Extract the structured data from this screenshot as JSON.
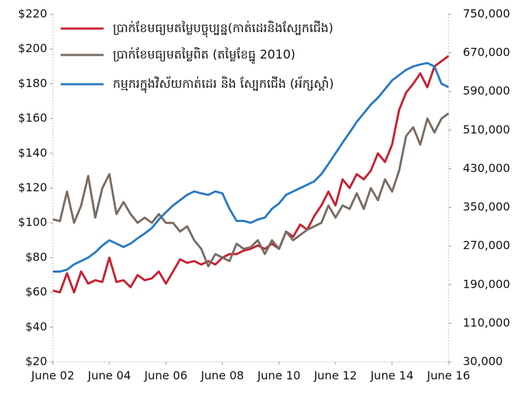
{
  "chart_data": {
    "type": "line",
    "categories": [
      "June 02",
      null,
      null,
      null,
      null,
      null,
      null,
      null,
      "June 04",
      null,
      null,
      null,
      null,
      null,
      null,
      null,
      "June 06",
      null,
      null,
      null,
      null,
      null,
      null,
      null,
      "June 08",
      null,
      null,
      null,
      null,
      null,
      null,
      null,
      "June 10",
      null,
      null,
      null,
      null,
      null,
      null,
      null,
      "June 12",
      null,
      null,
      null,
      null,
      null,
      null,
      null,
      "June 14",
      null,
      null,
      null,
      null,
      null,
      null,
      null,
      "June 16"
    ],
    "series": [
      {
        "name": "ប្រាក់ខែមធ្យមតម្លៃបច្ចុប្បន្ន(កាត់ដេរនិងស្បែកជើង)",
        "color": "#c8202f",
        "values": [
          61,
          60,
          71,
          60,
          72,
          65,
          67,
          66,
          80,
          66,
          67,
          63,
          70,
          67,
          68,
          72,
          65,
          72,
          79,
          77,
          78,
          76,
          78,
          76,
          80,
          82,
          82,
          84,
          85,
          87,
          85,
          88,
          85,
          95,
          92,
          99,
          96,
          104,
          110,
          118,
          110,
          125,
          120,
          128,
          125,
          130,
          140,
          135,
          145,
          165,
          175,
          180,
          186,
          178,
          190,
          193,
          196
        ]
      },
      {
        "name": "ប្រាក់ខែមធ្យមតម្លៃពិត (តម្លៃខែធ្នូ 2010)",
        "color": "#786c62",
        "values": [
          102,
          101,
          118,
          100,
          110,
          127,
          103,
          120,
          128,
          105,
          112,
          105,
          100,
          103,
          100,
          105,
          100,
          100,
          95,
          98,
          90,
          85,
          75,
          82,
          80,
          78,
          88,
          85,
          86,
          90,
          82,
          90,
          85,
          95,
          90,
          93,
          96,
          98,
          100,
          110,
          103,
          110,
          108,
          117,
          108,
          120,
          113,
          125,
          118,
          130,
          150,
          155,
          145,
          160,
          152,
          160,
          163
        ]
      },
      {
        "name": "កម្មករក្នុងវិស័យកាត់ដេរ និង ស្បែកជើង (អ័ក្សស្តាំ)",
        "color": "#2a7ac0",
        "axis": "y2",
        "values": [
          217000,
          217000,
          221000,
          232000,
          239000,
          246000,
          257000,
          271000,
          282000,
          275000,
          268000,
          275000,
          286000,
          296000,
          307000,
          325000,
          340000,
          354000,
          365000,
          376000,
          383000,
          379000,
          376000,
          383000,
          379000,
          347000,
          322000,
          322000,
          318000,
          325000,
          329000,
          347000,
          358000,
          376000,
          383000,
          390000,
          397000,
          404000,
          419000,
          440000,
          462000,
          484000,
          505000,
          527000,
          545000,
          563000,
          577000,
          595000,
          613000,
          624000,
          635000,
          642000,
          646000,
          649000,
          642000,
          606000,
          599000
        ]
      }
    ],
    "ylim": [
      20,
      220
    ],
    "yticks": [
      {
        "value": 20,
        "label": "$20"
      },
      {
        "value": 40,
        "label": "$40"
      },
      {
        "value": 60,
        "label": "$60"
      },
      {
        "value": 80,
        "label": "$80"
      },
      {
        "value": 100,
        "label": "$100"
      },
      {
        "value": 120,
        "label": "$120"
      },
      {
        "value": 140,
        "label": "$140"
      },
      {
        "value": 160,
        "label": "$160"
      },
      {
        "value": 180,
        "label": "$180"
      },
      {
        "value": 200,
        "label": "$200"
      },
      {
        "value": 220,
        "label": "$220"
      }
    ],
    "y2lim": [
      30000,
      750000
    ],
    "y2ticks": [
      {
        "value": 30000,
        "label": "30,000"
      },
      {
        "value": 110000,
        "label": "110,000"
      },
      {
        "value": 190000,
        "label": "190,000"
      },
      {
        "value": 270000,
        "label": "270,000"
      },
      {
        "value": 350000,
        "label": "350,000"
      },
      {
        "value": 430000,
        "label": "430,000"
      },
      {
        "value": 510000,
        "label": "510,000"
      },
      {
        "value": 590000,
        "label": "590,000"
      },
      {
        "value": 670000,
        "label": "670,000"
      },
      {
        "value": 750000,
        "label": "750,000"
      }
    ],
    "legend": "upper left"
  }
}
